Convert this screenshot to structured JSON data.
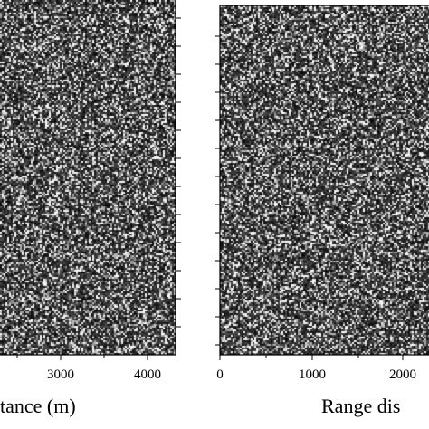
{
  "chart_data": [
    {
      "type": "heatmap",
      "title": "",
      "colormap": "grayscale",
      "content": "speckle noise image",
      "xlabel": "tance (m)",
      "xlim": [
        2000,
        4300
      ],
      "xticks": [
        "3000",
        "4000"
      ],
      "ylabel": "",
      "grid": false
    },
    {
      "type": "heatmap",
      "title": "",
      "colormap": "grayscale",
      "content": "speckle noise image",
      "xlabel": "Range dis",
      "xlim": [
        0,
        2550
      ],
      "xticks": [
        "0",
        "1000",
        "2000"
      ],
      "ylabel": "",
      "grid": false
    }
  ],
  "colors": {
    "background": "#ffffff",
    "axis": "#000000"
  }
}
